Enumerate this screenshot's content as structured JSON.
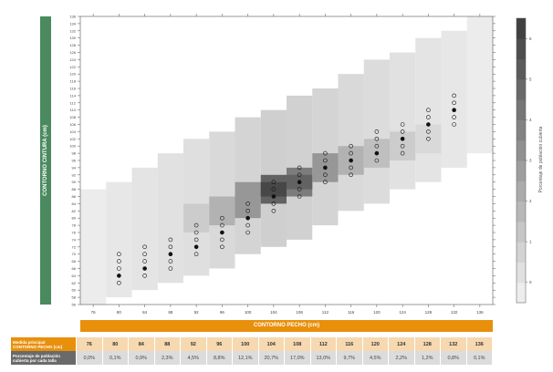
{
  "chart_data": {
    "type": "heatmap",
    "ylabel": "CONTORNO CINTURA (cm)",
    "xlabel": "CONTORNO PECHO (cm)",
    "colorbar_label": "Porcentaje de población cubierta",
    "colorbar_ticks": [
      "0",
      "1",
      "2",
      "3",
      "4",
      "5",
      "6"
    ],
    "colorbar_range": [
      0,
      7
    ],
    "colors": {
      "low": "#f4f4f4",
      "high": "#3a3a3a",
      "dot": "#111111",
      "x_label_bg": "#e8900c",
      "y_label_bg": "#4a8a5e"
    },
    "x_ticks": [
      "76",
      "80",
      "84",
      "88",
      "92",
      "96",
      "100",
      "104",
      "108",
      "112",
      "116",
      "120",
      "124",
      "128",
      "132",
      "136"
    ],
    "y_range": [
      56,
      136
    ],
    "y_ticks": [
      "56",
      "58",
      "60",
      "62",
      "64",
      "66",
      "68",
      "70",
      "72",
      "74",
      "76",
      "78",
      "80",
      "82",
      "84",
      "86",
      "88",
      "90",
      "92",
      "94",
      "96",
      "98",
      "100",
      "102",
      "104",
      "106",
      "108",
      "110",
      "112",
      "114",
      "116",
      "118",
      "120",
      "122",
      "124",
      "126",
      "128",
      "130",
      "132",
      "134",
      "136"
    ],
    "cells": [
      {
        "x": 76,
        "y": [
          56,
          88
        ],
        "v": 0.3
      },
      {
        "x": 80,
        "y": [
          58,
          90
        ],
        "v": 0.5
      },
      {
        "x": 84,
        "y": [
          60,
          94
        ],
        "v": 0.6
      },
      {
        "x": 88,
        "y": [
          62,
          98
        ],
        "v": 0.7
      },
      {
        "x": 92,
        "y": [
          64,
          102
        ],
        "v": 0.8
      },
      {
        "x": 96,
        "y": [
          66,
          104
        ],
        "v": 1.0
      },
      {
        "x": 100,
        "y": [
          70,
          108
        ],
        "v": 1.2
      },
      {
        "x": 104,
        "y": [
          72,
          110
        ],
        "v": 1.4
      },
      {
        "x": 108,
        "y": [
          74,
          114
        ],
        "v": 1.3
      },
      {
        "x": 112,
        "y": [
          78,
          116
        ],
        "v": 1.2
      },
      {
        "x": 116,
        "y": [
          82,
          120
        ],
        "v": 1.0
      },
      {
        "x": 120,
        "y": [
          84,
          124
        ],
        "v": 0.9
      },
      {
        "x": 124,
        "y": [
          88,
          126
        ],
        "v": 0.7
      },
      {
        "x": 128,
        "y": [
          90,
          130
        ],
        "v": 0.6
      },
      {
        "x": 132,
        "y": [
          94,
          132
        ],
        "v": 0.5
      },
      {
        "x": 136,
        "y": [
          98,
          136
        ],
        "v": 0.3
      },
      {
        "x": 92,
        "y": [
          76,
          84
        ],
        "v": 1.5
      },
      {
        "x": 96,
        "y": [
          78,
          86
        ],
        "v": 2.5
      },
      {
        "x": 100,
        "y": [
          80,
          90
        ],
        "v": 3.5
      },
      {
        "x": 104,
        "y": [
          84,
          92
        ],
        "v": 5.5
      },
      {
        "x": 104,
        "y": [
          86,
          90
        ],
        "v": 6.5
      },
      {
        "x": 108,
        "y": [
          86,
          94
        ],
        "v": 4.5
      },
      {
        "x": 108,
        "y": [
          88,
          92
        ],
        "v": 5.5
      },
      {
        "x": 112,
        "y": [
          90,
          98
        ],
        "v": 3.5
      },
      {
        "x": 116,
        "y": [
          92,
          100
        ],
        "v": 2.5
      },
      {
        "x": 120,
        "y": [
          94,
          102
        ],
        "v": 2.0
      },
      {
        "x": 124,
        "y": [
          96,
          104
        ],
        "v": 1.5
      },
      {
        "x": 128,
        "y": [
          98,
          106
        ],
        "v": 1.0
      }
    ],
    "markers": [
      {
        "x": 80,
        "waists": [
          62,
          64,
          66,
          68,
          70
        ],
        "main": 64
      },
      {
        "x": 84,
        "waists": [
          64,
          66,
          68,
          70,
          72
        ],
        "main": 66
      },
      {
        "x": 88,
        "waists": [
          66,
          68,
          70,
          72,
          74
        ],
        "main": 70
      },
      {
        "x": 92,
        "waists": [
          70,
          72,
          74,
          76,
          78
        ],
        "main": 72
      },
      {
        "x": 96,
        "waists": [
          72,
          74,
          76,
          78,
          80
        ],
        "main": 76
      },
      {
        "x": 100,
        "waists": [
          76,
          78,
          80,
          82,
          84
        ],
        "main": 80
      },
      {
        "x": 104,
        "waists": [
          82,
          84,
          86,
          88,
          90
        ],
        "main": 86
      },
      {
        "x": 108,
        "waists": [
          86,
          88,
          90,
          92,
          94
        ],
        "main": 90
      },
      {
        "x": 112,
        "waists": [
          90,
          92,
          94,
          96,
          98
        ],
        "main": 94
      },
      {
        "x": 116,
        "waists": [
          92,
          94,
          96,
          98,
          100
        ],
        "main": 96
      },
      {
        "x": 120,
        "waists": [
          96,
          98,
          100,
          102,
          104
        ],
        "main": 98
      },
      {
        "x": 124,
        "waists": [
          98,
          100,
          102,
          104,
          106
        ],
        "main": 102
      },
      {
        "x": 128,
        "waists": [
          102,
          104,
          106,
          108,
          110
        ],
        "main": 106
      },
      {
        "x": 132,
        "waists": [
          106,
          108,
          110,
          112,
          114
        ],
        "main": 110
      }
    ]
  },
  "table": {
    "row1_label_a": "Medida principal",
    "row1_label_b": "CONTORNO PECHO (cm)",
    "row2_label_a": "Porcentaje de población",
    "row2_label_b": "cubierta por cada talla",
    "sizes": [
      "76",
      "80",
      "84",
      "88",
      "92",
      "96",
      "100",
      "104",
      "108",
      "112",
      "116",
      "120",
      "124",
      "128",
      "132",
      "136"
    ],
    "percents": [
      "0,0%",
      "0,1%",
      "0,9%",
      "2,3%",
      "4,5%",
      "8,8%",
      "12,1%",
      "20,7%",
      "17,0%",
      "13,0%",
      "9,7%",
      "4,5%",
      "2,2%",
      "1,2%",
      "0,8%",
      "0,1%"
    ]
  }
}
